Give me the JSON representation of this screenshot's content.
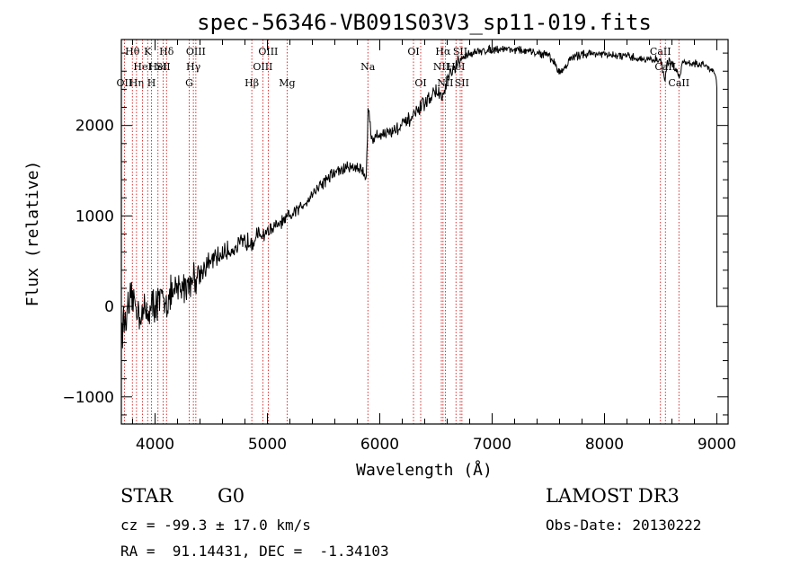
{
  "chart_data": {
    "type": "line",
    "title": "spec-56346-VB091S03V3_sp11-019.fits",
    "xlabel": "Wavelength (Å)",
    "ylabel": "Flux (relative)",
    "xlim": [
      3700,
      9100
    ],
    "ylim": [
      -1300,
      2950
    ],
    "xticks": [
      4000,
      5000,
      6000,
      7000,
      8000,
      9000
    ],
    "yticks": [
      -1000,
      0,
      1000,
      2000
    ],
    "grid": false,
    "series": [
      {
        "name": "flux",
        "x": [
          3700,
          3750,
          3800,
          3850,
          3900,
          3950,
          4000,
          4050,
          4100,
          4150,
          4200,
          4250,
          4300,
          4350,
          4400,
          4500,
          4600,
          4700,
          4800,
          4900,
          5000,
          5100,
          5200,
          5300,
          5400,
          5500,
          5600,
          5700,
          5800,
          5880,
          5895,
          5905,
          5930,
          6000,
          6100,
          6200,
          6300,
          6400,
          6500,
          6560,
          6600,
          6700,
          6800,
          6900,
          7000,
          7100,
          7200,
          7300,
          7400,
          7500,
          7550,
          7600,
          7650,
          7700,
          7800,
          7900,
          8000,
          8100,
          8200,
          8300,
          8400,
          8500,
          8540,
          8560,
          8600,
          8660,
          8700,
          8800,
          8900,
          8980,
          9000
        ],
        "y": [
          -250,
          -100,
          100,
          -50,
          -80,
          -30,
          30,
          60,
          80,
          120,
          180,
          220,
          260,
          330,
          380,
          500,
          580,
          640,
          710,
          760,
          830,
          900,
          990,
          1100,
          1250,
          1380,
          1480,
          1530,
          1550,
          1450,
          2150,
          2100,
          1850,
          1900,
          1930,
          2000,
          2100,
          2250,
          2380,
          2300,
          2500,
          2700,
          2800,
          2820,
          2840,
          2850,
          2840,
          2820,
          2800,
          2780,
          2700,
          2580,
          2650,
          2740,
          2790,
          2800,
          2780,
          2770,
          2760,
          2740,
          2730,
          2720,
          2500,
          2710,
          2690,
          2550,
          2700,
          2690,
          2660,
          2600,
          2450
        ]
      }
    ],
    "line_markers": [
      {
        "wl": 3727,
        "label": "OII",
        "tier": 2
      },
      {
        "wl": 3798,
        "label": "Hθ",
        "tier": 0
      },
      {
        "wl": 3835,
        "label": "Hη",
        "tier": 2
      },
      {
        "wl": 3889,
        "label": "HeI",
        "tier": 1
      },
      {
        "wl": 3934,
        "label": "K",
        "tier": 0
      },
      {
        "wl": 3968,
        "label": "H",
        "tier": 2
      },
      {
        "wl": 4026,
        "label": "HeI",
        "tier": 1
      },
      {
        "wl": 4072,
        "label": "SII",
        "tier": 1
      },
      {
        "wl": 4102,
        "label": "Hδ",
        "tier": 0
      },
      {
        "wl": 4304,
        "label": "G",
        "tier": 2
      },
      {
        "wl": 4341,
        "label": "Hγ",
        "tier": 1
      },
      {
        "wl": 4363,
        "label": "OIII",
        "tier": 0
      },
      {
        "wl": 4861,
        "label": "Hβ",
        "tier": 2
      },
      {
        "wl": 4959,
        "label": "OIII",
        "tier": 1
      },
      {
        "wl": 5007,
        "label": "OIII",
        "tier": 0
      },
      {
        "wl": 5175,
        "label": "Mg",
        "tier": 2
      },
      {
        "wl": 5894,
        "label": "Na",
        "tier": 1
      },
      {
        "wl": 6300,
        "label": "OI",
        "tier": 0
      },
      {
        "wl": 6364,
        "label": "OI",
        "tier": 2
      },
      {
        "wl": 6548,
        "label": "NII",
        "tier": 1
      },
      {
        "wl": 6563,
        "label": "Hα",
        "tier": 0
      },
      {
        "wl": 6583,
        "label": "NII",
        "tier": 2
      },
      {
        "wl": 6678,
        "label": "HeI",
        "tier": 1
      },
      {
        "wl": 6716,
        "label": "SII",
        "tier": 0
      },
      {
        "wl": 6731,
        "label": "SII",
        "tier": 2
      },
      {
        "wl": 8498,
        "label": "CaII",
        "tier": 0
      },
      {
        "wl": 8542,
        "label": "CaII",
        "tier": 1
      },
      {
        "wl": 8662,
        "label": "CaII",
        "tier": 2
      }
    ]
  },
  "info": {
    "class": "STAR",
    "subclass": "G0",
    "survey": "LAMOST DR3",
    "redshift": "cz = -99.3 ± 17.0 km/s",
    "obs_date": "Obs-Date: 20130222",
    "coords": "RA =  91.14431, DEC =  -1.34103"
  },
  "colors": {
    "line": "#000000",
    "marker": "#cc0000",
    "background": "#ffffff"
  }
}
